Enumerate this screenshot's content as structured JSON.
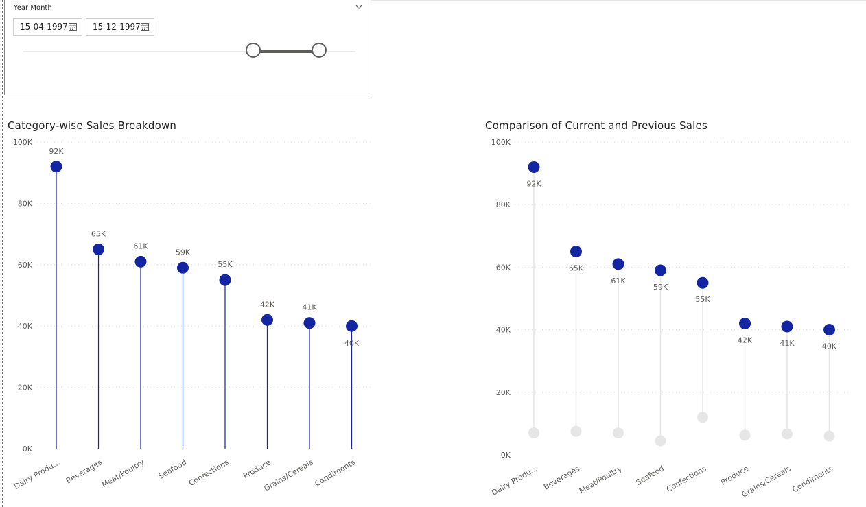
{
  "slicer": {
    "title": "Year Month",
    "start_date": "15-04-1997",
    "end_date": "15-12-1997"
  },
  "icons": {
    "chevron": "chevron-down-icon",
    "calendar": "calendar-icon"
  },
  "colors": {
    "current": "#1325a0",
    "previous": "#e6e6e6",
    "grid": "#d9d9d9"
  },
  "chart_data": [
    {
      "type": "lollipop",
      "title": "Category-wise Sales Breakdown",
      "categories": [
        "Dairy Produ...",
        "Beverages",
        "Meat/Poultry",
        "Seafood",
        "Confections",
        "Produce",
        "Grains/Cereals",
        "Condiments"
      ],
      "values": [
        92000,
        65000,
        61000,
        59000,
        55000,
        42000,
        41000,
        40000
      ],
      "data_labels": [
        "92K",
        "65K",
        "61K",
        "59K",
        "55K",
        "42K",
        "41K",
        "40K"
      ],
      "yticks": [
        "0K",
        "20K",
        "40K",
        "60K",
        "80K",
        "100K"
      ],
      "ylim": [
        0,
        100000
      ],
      "grid": true
    },
    {
      "type": "dumbbell",
      "title": "Comparison of Current and Previous Sales",
      "categories": [
        "Dairy Produ...",
        "Beverages",
        "Meat/Poultry",
        "Seafood",
        "Confections",
        "Produce",
        "Grains/Cereals",
        "Condiments"
      ],
      "series": [
        {
          "values": [
            92000,
            65000,
            61000,
            59000,
            55000,
            42000,
            41000,
            40000
          ]
        },
        {
          "values": [
            7000,
            7500,
            7000,
            4500,
            12000,
            6300,
            6700,
            6000
          ]
        }
      ],
      "data_labels": [
        "92K",
        "65K",
        "61K",
        "59K",
        "55K",
        "42K",
        "41K",
        "40K"
      ],
      "yticks": [
        "0K",
        "20K",
        "40K",
        "60K",
        "80K",
        "100K"
      ],
      "ylim": [
        0,
        100000
      ],
      "grid": true
    }
  ]
}
